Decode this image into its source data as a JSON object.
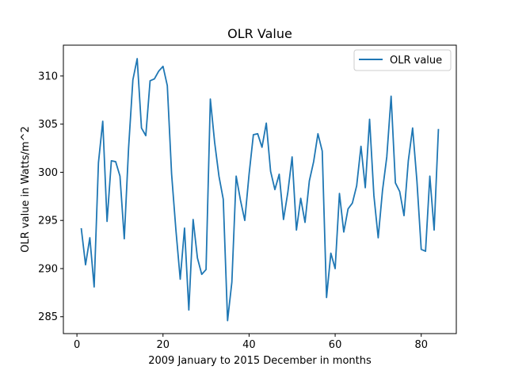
{
  "chart_data": {
    "type": "line",
    "title": "OLR Value",
    "xlabel": "2009 January to 2015 December in months",
    "ylabel": "OLR value in Watts/m^2",
    "xlim": [
      -3.15,
      88.15
    ],
    "ylim": [
      283.25,
      313.2
    ],
    "xticks": [
      0,
      20,
      40,
      60,
      80
    ],
    "yticks": [
      285,
      290,
      295,
      300,
      305,
      310
    ],
    "grid": false,
    "legend_position": "top-right",
    "series": [
      {
        "name": "OLR value",
        "color": "#1f77b4",
        "x": [
          1,
          2,
          3,
          4,
          5,
          6,
          7,
          8,
          9,
          10,
          11,
          12,
          13,
          14,
          15,
          16,
          17,
          18,
          19,
          20,
          21,
          22,
          23,
          24,
          25,
          26,
          27,
          28,
          29,
          30,
          31,
          32,
          33,
          34,
          35,
          36,
          37,
          38,
          39,
          40,
          41,
          42,
          43,
          44,
          45,
          46,
          47,
          48,
          49,
          50,
          51,
          52,
          53,
          54,
          55,
          56,
          57,
          58,
          59,
          60,
          61,
          62,
          63,
          64,
          65,
          66,
          67,
          68,
          69,
          70,
          71,
          72,
          73,
          74,
          75,
          76,
          77,
          78,
          79,
          80,
          81,
          82,
          83,
          84
        ],
        "values": [
          294.2,
          290.4,
          293.2,
          288.1,
          301.0,
          305.3,
          294.9,
          301.2,
          301.1,
          299.6,
          293.1,
          302.5,
          309.6,
          311.8,
          304.6,
          303.8,
          309.5,
          309.7,
          310.5,
          311.0,
          309.0,
          299.8,
          294.0,
          288.9,
          294.2,
          285.7,
          295.1,
          291.1,
          289.4,
          289.9,
          307.6,
          303.1,
          299.6,
          297.2,
          284.6,
          288.6,
          299.6,
          297.1,
          295.0,
          299.8,
          303.9,
          304.0,
          302.6,
          305.1,
          300.1,
          298.2,
          299.8,
          295.1,
          297.9,
          301.6,
          294.0,
          297.3,
          294.8,
          299.1,
          301.1,
          304.0,
          302.2,
          287.0,
          291.6,
          290.0,
          297.8,
          293.8,
          296.2,
          296.8,
          298.6,
          302.7,
          298.4,
          305.5,
          297.6,
          293.2,
          298.1,
          301.6,
          307.9,
          298.9,
          298.0,
          295.5,
          301.2,
          304.6,
          299.1,
          292.0,
          291.8,
          299.6,
          294.0,
          304.5
        ]
      }
    ]
  }
}
